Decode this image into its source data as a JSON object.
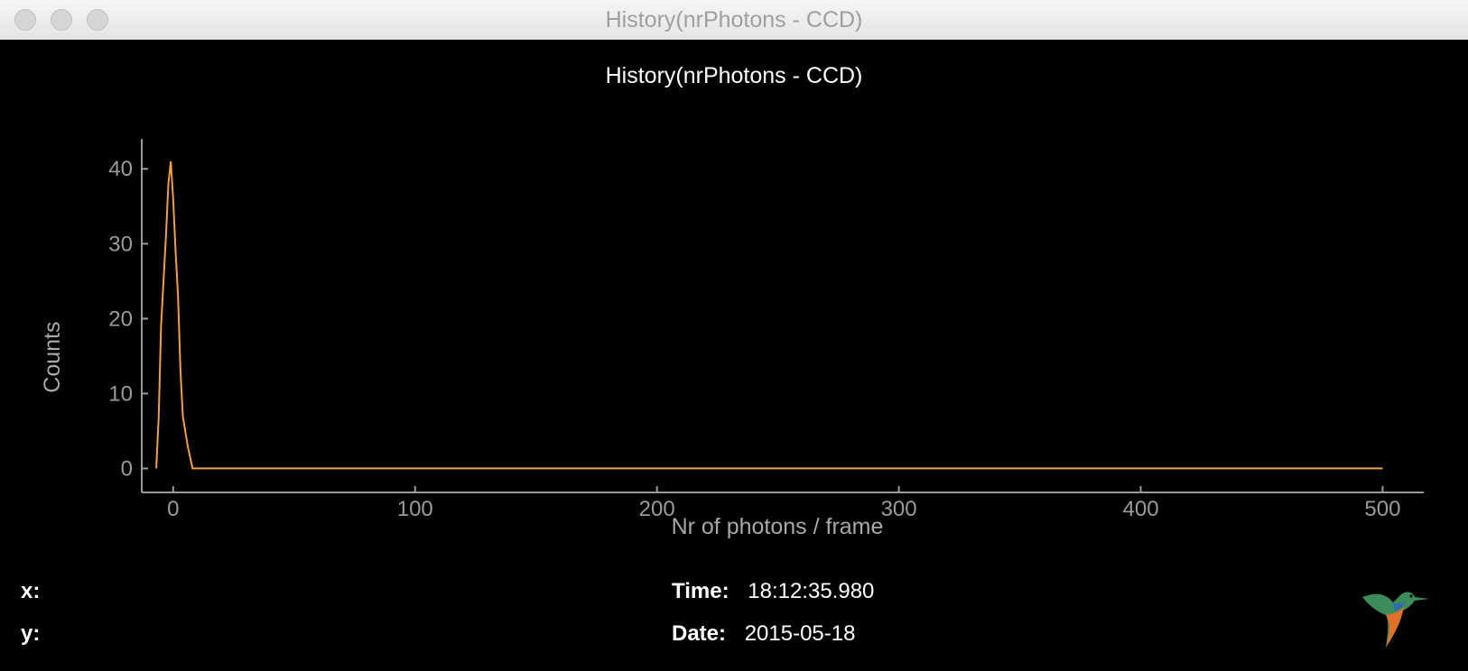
{
  "window": {
    "title": "History(nrPhotons - CCD)"
  },
  "chart_data": {
    "type": "line",
    "title": "History(nrPhotons - CCD)",
    "xlabel": "Nr of photons / frame",
    "ylabel": "Counts",
    "xlim": [
      -13,
      517
    ],
    "ylim": [
      -3.2,
      44
    ],
    "xticks": [
      0,
      100,
      200,
      300,
      400,
      500
    ],
    "xtick_labels": [
      "0",
      "100",
      "200",
      "300",
      "400",
      "500"
    ],
    "yticks": [
      0,
      10,
      20,
      30,
      40
    ],
    "ytick_labels": [
      "0",
      "10",
      "20",
      "30",
      "40"
    ],
    "grid": false,
    "line_color": "#f0a040",
    "series": [
      {
        "x": [
          -7,
          -6,
          -5.5,
          -5,
          -4,
          -3,
          -2,
          -1,
          0,
          1,
          2,
          3,
          4,
          5,
          6,
          8,
          500
        ],
        "values": [
          0,
          7,
          13,
          19,
          25,
          31,
          38,
          41,
          36,
          29,
          23,
          13,
          7,
          5,
          3,
          0,
          0
        ]
      }
    ]
  },
  "readout": {
    "x_label": "x:",
    "y_label": "y:",
    "time_label": "Time:",
    "time_value": "18:12:35.980",
    "date_label": "Date:",
    "date_value": "2015-05-18"
  },
  "colors": {
    "background": "#000000",
    "axis": "#9a9a9a",
    "line": "#f0a040"
  }
}
